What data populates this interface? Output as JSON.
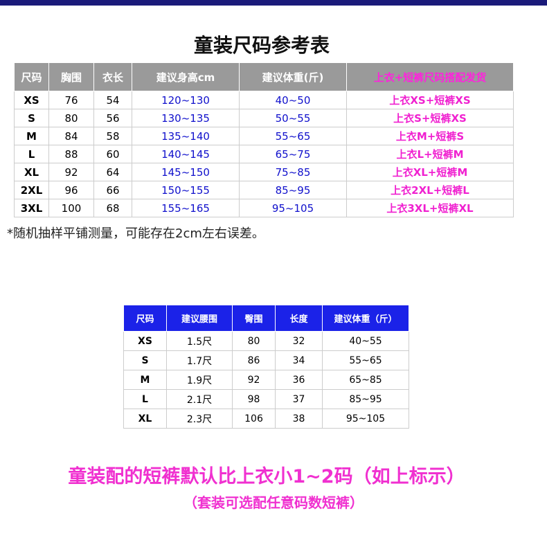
{
  "title": "童装尺码参考表",
  "table1": {
    "header": [
      "尺码",
      "胸围",
      "衣长",
      "建议身高cm",
      "建议体重(斤)",
      "上衣+短裤尺码搭配发货"
    ],
    "rows": [
      [
        "XS",
        "76",
        "54",
        "120~130",
        "40~50",
        "上衣XS+短裤XS"
      ],
      [
        "S",
        "80",
        "56",
        "130~135",
        "50~55",
        "上衣S+短裤XS"
      ],
      [
        "M",
        "84",
        "58",
        "135~140",
        "55~65",
        "上衣M+短裤S"
      ],
      [
        "L",
        "88",
        "60",
        "140~145",
        "65~75",
        "上衣L+短裤M"
      ],
      [
        "XL",
        "92",
        "64",
        "145~150",
        "75~85",
        "上衣XL+短裤M"
      ],
      [
        "2XL",
        "96",
        "66",
        "150~155",
        "85~95",
        "上衣2XL+短裤L"
      ],
      [
        "3XL",
        "100",
        "68",
        "155~165",
        "95~105",
        "上衣3XL+短裤XL"
      ]
    ]
  },
  "note": "*随机抽样平铺测量，可能存在2cm左右误差。",
  "table2": {
    "header": [
      "尺码",
      "建议腰围",
      "臀围",
      "长度",
      "建议体重（斤）"
    ],
    "rows": [
      [
        "XS",
        "1.5尺",
        "80",
        "32",
        "40~55"
      ],
      [
        "S",
        "1.7尺",
        "86",
        "34",
        "55~65"
      ],
      [
        "M",
        "1.9尺",
        "92",
        "36",
        "65~85"
      ],
      [
        "L",
        "2.1尺",
        "98",
        "37",
        "85~95"
      ],
      [
        "XL",
        "2.3尺",
        "106",
        "38",
        "95~105"
      ]
    ]
  },
  "footer": {
    "line1": "童装配的短裤默认比上衣小1~2码（如上标示）",
    "line2": "（套装可选配任意码数短裤）"
  }
}
